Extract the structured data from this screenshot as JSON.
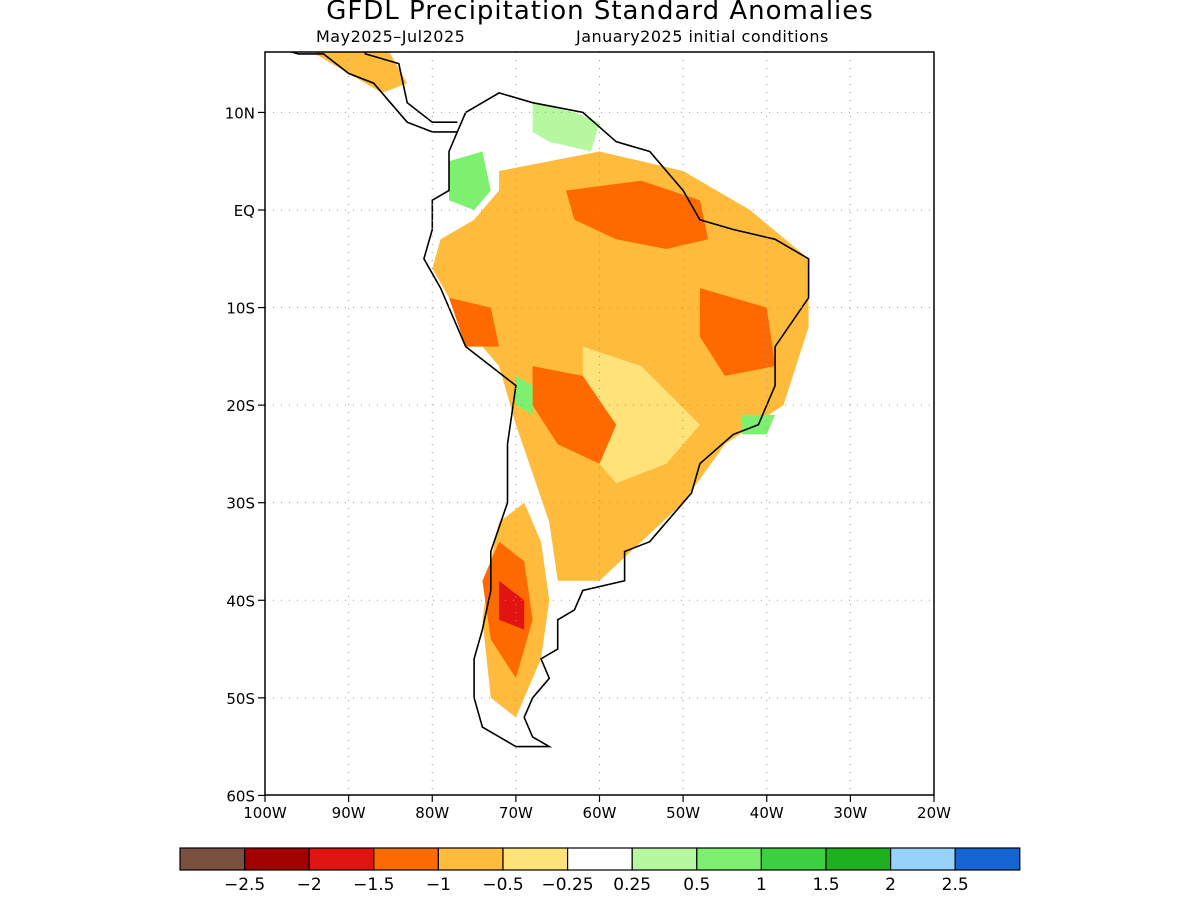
{
  "title": "GFDL Precipitation Standard Anomalies",
  "subtitle_left": "May2025–Jul2025",
  "subtitle_right": "January2025 initial conditions",
  "map": {
    "lon_range": [
      -100,
      -20
    ],
    "lat_range": [
      -60,
      16
    ],
    "lat_ticks": [
      {
        "lat": 10,
        "label": "10N"
      },
      {
        "lat": 0,
        "label": "EQ"
      },
      {
        "lat": -10,
        "label": "10S"
      },
      {
        "lat": -20,
        "label": "20S"
      },
      {
        "lat": -30,
        "label": "30S"
      },
      {
        "lat": -40,
        "label": "40S"
      },
      {
        "lat": -50,
        "label": "50S"
      },
      {
        "lat": -60,
        "label": "60S"
      }
    ],
    "lon_ticks": [
      {
        "lon": -100,
        "label": "100W"
      },
      {
        "lon": -90,
        "label": "90W"
      },
      {
        "lon": -80,
        "label": "80W"
      },
      {
        "lon": -70,
        "label": "70W"
      },
      {
        "lon": -60,
        "label": "60W"
      },
      {
        "lon": -50,
        "label": "50W"
      },
      {
        "lon": -40,
        "label": "40W"
      },
      {
        "lon": -30,
        "label": "30W"
      },
      {
        "lon": -20,
        "label": "20W"
      }
    ],
    "grid": "dotted"
  },
  "colorbar": {
    "colors": [
      "#7a5040",
      "#a30000",
      "#e01410",
      "#ff6a00",
      "#ffbb3c",
      "#ffe27a",
      "#ffffff",
      "#b6f8a0",
      "#7ef070",
      "#3cd040",
      "#1eb01e",
      "#96d2fa",
      "#1464d2"
    ],
    "labels": [
      "−2.5",
      "−2",
      "−1.5",
      "−1",
      "−0.5",
      "−0.25",
      "0.25",
      "0.5",
      "1",
      "1.5",
      "2",
      "2.5"
    ]
  },
  "anomaly_regions": [
    {
      "level": "-0.5",
      "color": "#ffbb3c",
      "lonlat": [
        [
          -72,
          4
        ],
        [
          -60,
          6
        ],
        [
          -50,
          4
        ],
        [
          -42,
          0
        ],
        [
          -35,
          -5
        ],
        [
          -35,
          -12
        ],
        [
          -38,
          -20
        ],
        [
          -45,
          -24
        ],
        [
          -50,
          -30
        ],
        [
          -55,
          -34
        ],
        [
          -60,
          -38
        ],
        [
          -65,
          -38
        ],
        [
          -66,
          -32
        ],
        [
          -68,
          -27
        ],
        [
          -70,
          -22
        ],
        [
          -72,
          -16
        ],
        [
          -76,
          -12
        ],
        [
          -80,
          -6
        ],
        [
          -79,
          -3
        ],
        [
          -75,
          -1
        ],
        [
          -72,
          2
        ]
      ]
    },
    {
      "level": "-0.5",
      "color": "#ffbb3c",
      "lonlat": [
        [
          -72,
          -32
        ],
        [
          -69,
          -30
        ],
        [
          -67,
          -34
        ],
        [
          -66,
          -40
        ],
        [
          -67,
          -46
        ],
        [
          -70,
          -52
        ],
        [
          -73,
          -50
        ],
        [
          -74,
          -42
        ],
        [
          -73,
          -36
        ]
      ]
    },
    {
      "level": "-0.5",
      "color": "#ffbb3c",
      "lonlat": [
        [
          -93,
          19
        ],
        [
          -87,
          18
        ],
        [
          -85,
          16
        ],
        [
          -83,
          13
        ],
        [
          -86,
          12
        ],
        [
          -90,
          14
        ],
        [
          -94,
          16
        ]
      ]
    },
    {
      "level": "-0.25",
      "color": "#ffe27a",
      "lonlat": [
        [
          -62,
          -14
        ],
        [
          -55,
          -16
        ],
        [
          -48,
          -22
        ],
        [
          -52,
          -26
        ],
        [
          -58,
          -28
        ],
        [
          -62,
          -24
        ]
      ]
    },
    {
      "level": "-1",
      "color": "#ff6a00",
      "lonlat": [
        [
          -64,
          2
        ],
        [
          -55,
          3
        ],
        [
          -48,
          1
        ],
        [
          -47,
          -3
        ],
        [
          -52,
          -4
        ],
        [
          -58,
          -3
        ],
        [
          -63,
          -1
        ]
      ]
    },
    {
      "level": "-1",
      "color": "#ff6a00",
      "lonlat": [
        [
          -48,
          -8
        ],
        [
          -40,
          -10
        ],
        [
          -39,
          -16
        ],
        [
          -45,
          -17
        ],
        [
          -48,
          -13
        ]
      ]
    },
    {
      "level": "-1",
      "color": "#ff6a00",
      "lonlat": [
        [
          -68,
          -16
        ],
        [
          -62,
          -17
        ],
        [
          -58,
          -22
        ],
        [
          -60,
          -26
        ],
        [
          -65,
          -24
        ],
        [
          -68,
          -20
        ]
      ]
    },
    {
      "level": "-1",
      "color": "#ff6a00",
      "lonlat": [
        [
          -78,
          -9
        ],
        [
          -73,
          -10
        ],
        [
          -72,
          -14
        ],
        [
          -76,
          -14
        ]
      ]
    },
    {
      "level": "-1",
      "color": "#ff6a00",
      "lonlat": [
        [
          -72,
          -34
        ],
        [
          -69,
          -36
        ],
        [
          -68,
          -42
        ],
        [
          -70,
          -48
        ],
        [
          -73,
          -44
        ],
        [
          -74,
          -38
        ]
      ]
    },
    {
      "level": "-1.5",
      "color": "#e01410",
      "lonlat": [
        [
          -72,
          -38
        ],
        [
          -69,
          -40
        ],
        [
          -69,
          -43
        ],
        [
          -72,
          -42
        ]
      ]
    },
    {
      "level": "0.5",
      "color": "#7ef070",
      "lonlat": [
        [
          -78,
          5
        ],
        [
          -74,
          6
        ],
        [
          -73,
          2
        ],
        [
          -75,
          0
        ],
        [
          -78,
          1
        ]
      ]
    },
    {
      "level": "0.5",
      "color": "#7ef070",
      "lonlat": [
        [
          -70,
          -17
        ],
        [
          -68,
          -18
        ],
        [
          -68,
          -21
        ],
        [
          -70,
          -20
        ]
      ]
    },
    {
      "level": "0.5",
      "color": "#7ef070",
      "lonlat": [
        [
          -43,
          -21
        ],
        [
          -39,
          -21
        ],
        [
          -40,
          -23
        ],
        [
          -43,
          -23
        ]
      ]
    },
    {
      "level": "0.25",
      "color": "#b6f8a0",
      "lonlat": [
        [
          -68,
          11
        ],
        [
          -63,
          10
        ],
        [
          -60,
          9
        ],
        [
          -61,
          6
        ],
        [
          -66,
          7
        ],
        [
          -68,
          8
        ]
      ]
    }
  ],
  "coastline": [
    [
      -77,
      8
    ],
    [
      -76,
      10
    ],
    [
      -72,
      12
    ],
    [
      -68,
      11
    ],
    [
      -62,
      10
    ],
    [
      -58,
      7
    ],
    [
      -54,
      6
    ],
    [
      -50,
      2
    ],
    [
      -48,
      -1
    ],
    [
      -44,
      -2
    ],
    [
      -39,
      -3
    ],
    [
      -35,
      -5
    ],
    [
      -35,
      -9
    ],
    [
      -39,
      -14
    ],
    [
      -39,
      -18
    ],
    [
      -41,
      -22
    ],
    [
      -44,
      -23
    ],
    [
      -48,
      -26
    ],
    [
      -49,
      -29
    ],
    [
      -52,
      -32
    ],
    [
      -54,
      -34
    ],
    [
      -57,
      -35
    ],
    [
      -57,
      -38
    ],
    [
      -62,
      -39
    ],
    [
      -63,
      -41
    ],
    [
      -65,
      -42
    ],
    [
      -65,
      -45
    ],
    [
      -67,
      -46
    ],
    [
      -66,
      -48
    ],
    [
      -68,
      -50
    ],
    [
      -69,
      -52
    ],
    [
      -68,
      -54
    ],
    [
      -66,
      -55
    ],
    [
      -70,
      -55
    ],
    [
      -74,
      -53
    ],
    [
      -75,
      -50
    ],
    [
      -75,
      -46
    ],
    [
      -74,
      -43
    ],
    [
      -73,
      -39
    ],
    [
      -73,
      -35
    ],
    [
      -71,
      -30
    ],
    [
      -71,
      -24
    ],
    [
      -70,
      -18
    ],
    [
      -76,
      -14
    ],
    [
      -79,
      -8
    ],
    [
      -81,
      -5
    ],
    [
      -80,
      -2
    ],
    [
      -80,
      1
    ],
    [
      -78,
      2
    ],
    [
      -78,
      6
    ],
    [
      -77,
      8
    ]
  ],
  "central_america": [
    [
      -77,
      8
    ],
    [
      -80,
      8
    ],
    [
      -83,
      9
    ],
    [
      -85,
      11
    ],
    [
      -87,
      13
    ],
    [
      -90,
      14
    ],
    [
      -93,
      16
    ],
    [
      -96,
      16
    ],
    [
      -100,
      17
    ]
  ],
  "central_america_caribbean": [
    [
      -77,
      9
    ],
    [
      -80,
      9
    ],
    [
      -83,
      11
    ],
    [
      -84,
      15
    ],
    [
      -88,
      16
    ],
    [
      -88,
      18
    ],
    [
      -90,
      21
    ]
  ]
}
